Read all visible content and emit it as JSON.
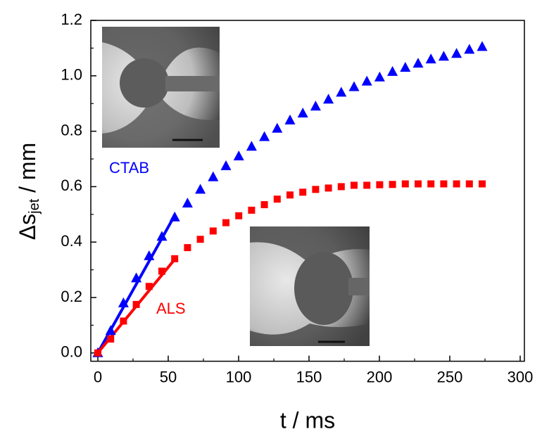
{
  "chart_data": {
    "type": "scatter",
    "xlabel": "t / ms",
    "ylabel": {
      "main": "Δs",
      "sub": "jet",
      "unit": " / mm"
    },
    "xlim": [
      -5,
      303
    ],
    "ylim": [
      -0.03,
      1.2
    ],
    "xticks": [
      0,
      50,
      100,
      150,
      200,
      250,
      300
    ],
    "yticks": [
      {
        "value": 0,
        "label": "0.0"
      },
      0.2,
      0.4,
      0.6,
      0.8,
      {
        "value": 1,
        "label": "1.0"
      },
      1.2
    ],
    "xminor_ticks": [
      25,
      75,
      125,
      175,
      225,
      275
    ],
    "yminor_ticks": [
      0.1,
      0.3,
      0.5,
      0.7,
      0.9,
      1.1
    ],
    "x": [
      0,
      9.1,
      18.2,
      27.3,
      36.4,
      45.5,
      54.6,
      63.7,
      72.8,
      81.9,
      91,
      100.1,
      109.2,
      118.3,
      127.4,
      136.5,
      145.6,
      154.7,
      163.8,
      172.9,
      182,
      191.1,
      200.2,
      209.3,
      218.4,
      227.5,
      236.6,
      245.7,
      254.8,
      263.9,
      273
    ],
    "series": [
      {
        "name": "CTAB",
        "color": "#0000ff",
        "marker": "triangle",
        "values": [
          0,
          0.08,
          0.18,
          0.27,
          0.35,
          0.42,
          0.49,
          0.54,
          0.59,
          0.635,
          0.675,
          0.71,
          0.745,
          0.78,
          0.81,
          0.84,
          0.865,
          0.89,
          0.915,
          0.94,
          0.96,
          0.98,
          0.995,
          1.015,
          1.03,
          1.045,
          1.06,
          1.07,
          1.08,
          1.095,
          1.105
        ]
      },
      {
        "name": "ALS",
        "color": "#ff0000",
        "marker": "square",
        "values": [
          0,
          0.05,
          0.115,
          0.175,
          0.24,
          0.295,
          0.34,
          0.38,
          0.41,
          0.44,
          0.47,
          0.495,
          0.515,
          0.535,
          0.555,
          0.57,
          0.58,
          0.59,
          0.595,
          0.6,
          0.605,
          0.605,
          0.607,
          0.608,
          0.61,
          0.61,
          0.61,
          0.61,
          0.61,
          0.61,
          0.61
        ]
      }
    ],
    "fit_lines": [
      {
        "color": "#0000ff",
        "x": [
          0,
          55
        ],
        "values": [
          0,
          0.5
        ]
      },
      {
        "color": "#ff0000",
        "x": [
          0,
          55
        ],
        "values": [
          0,
          0.34
        ]
      }
    ]
  }
}
